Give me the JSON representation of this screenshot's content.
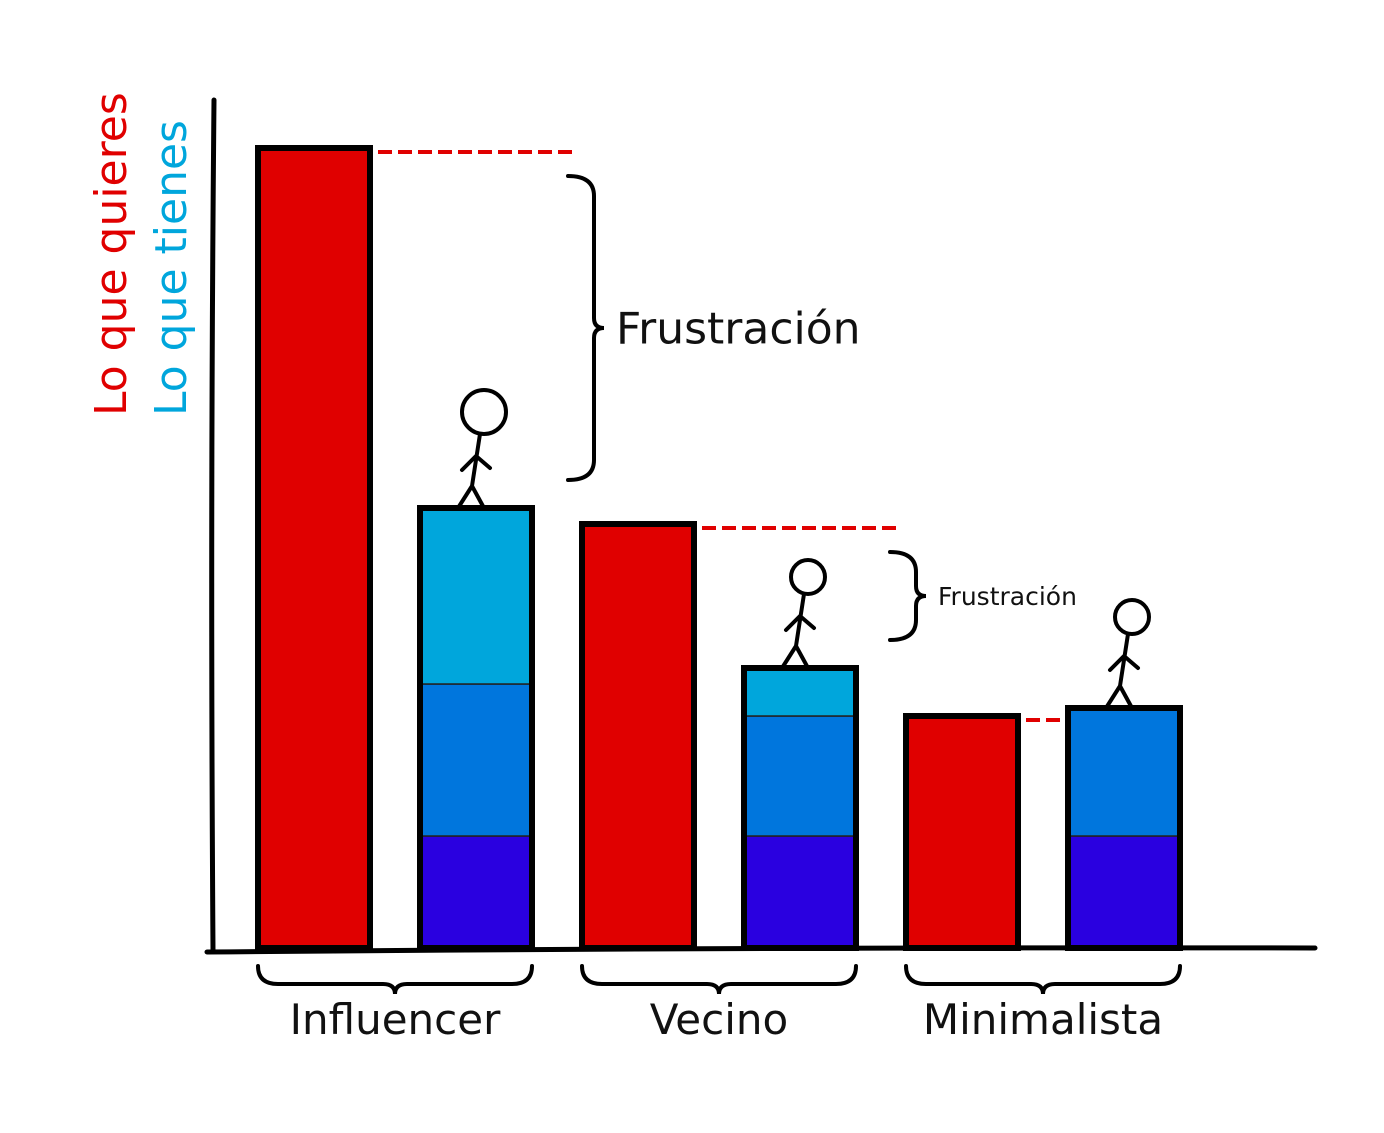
{
  "chart_data": {
    "type": "bar",
    "categories": [
      "Influencer",
      "Vecino",
      "Minimalista"
    ],
    "series": [
      {
        "name": "Lo que quieres",
        "color": "#e00000",
        "values": [
          100,
          53,
          29
        ]
      },
      {
        "name": "Lo que tienes",
        "color": "#0080e0",
        "stack": [
          {
            "color": "#2a00e0",
            "values": [
              14,
              14,
              14
            ]
          },
          {
            "color": "#0076dd",
            "values": [
              19,
              15,
              16
            ]
          },
          {
            "color": "#00a6dc",
            "values": [
              22,
              6,
              0
            ]
          }
        ],
        "values": [
          55,
          35,
          30
        ]
      }
    ],
    "annotations": [
      {
        "text": "Frustración",
        "category": "Influencer"
      },
      {
        "text": "Frustración",
        "category": "Vecino"
      }
    ],
    "gap_line_color": "#e00000",
    "grid": false,
    "legend": "left-vertical",
    "ylim": [
      0,
      108
    ]
  },
  "legend": {
    "want": "Lo que quieres",
    "have": "Lo que tienes"
  }
}
